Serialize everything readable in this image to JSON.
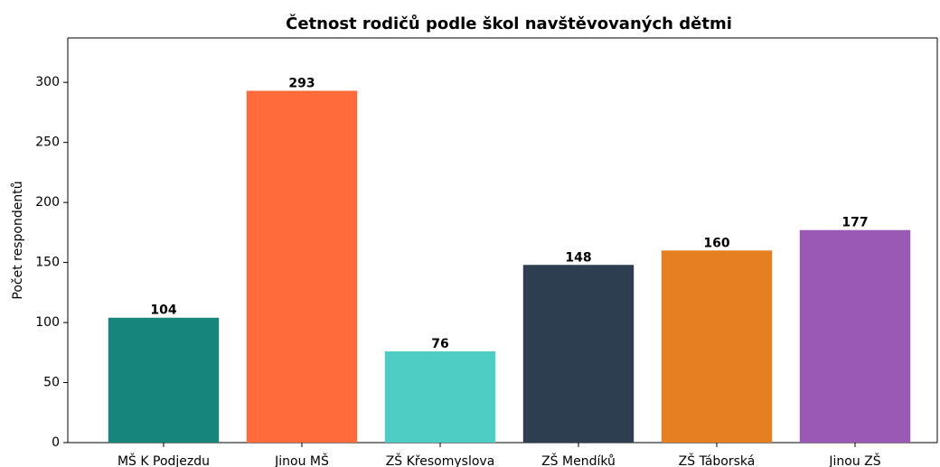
{
  "chart_data": {
    "type": "bar",
    "title": "Četnost rodičů podle škol navštěvovaných dětmi",
    "ylabel": "Počet respondentů",
    "categories": [
      "MŠ K Podjezdu",
      "Jinou MŠ",
      "ZŠ Křesomyslova",
      "ZŠ Mendíků",
      "ZŠ Táborská",
      "Jinou ZŠ"
    ],
    "values": [
      104,
      293,
      76,
      148,
      160,
      177
    ],
    "colors": [
      "#16857a",
      "#ff6b3a",
      "#4ecdc4",
      "#2c3e50",
      "#e67e22",
      "#9b59b6"
    ],
    "ylim": [
      0,
      337
    ],
    "yticks": [
      0,
      50,
      100,
      150,
      200,
      250,
      300
    ],
    "grid": false
  }
}
